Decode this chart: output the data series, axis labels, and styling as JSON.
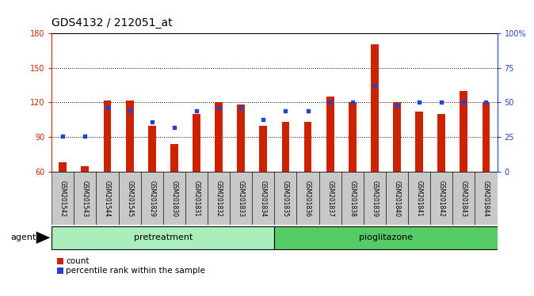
{
  "title": "GDS4132 / 212051_at",
  "samples": [
    "GSM201542",
    "GSM201543",
    "GSM201544",
    "GSM201545",
    "GSM201829",
    "GSM201830",
    "GSM201831",
    "GSM201832",
    "GSM201833",
    "GSM201834",
    "GSM201835",
    "GSM201836",
    "GSM201837",
    "GSM201838",
    "GSM201839",
    "GSM201840",
    "GSM201841",
    "GSM201842",
    "GSM201843",
    "GSM201844"
  ],
  "counts": [
    68,
    65,
    122,
    122,
    100,
    84,
    110,
    120,
    118,
    100,
    103,
    103,
    125,
    120,
    170,
    120,
    112,
    110,
    130,
    120
  ],
  "percentiles": [
    26,
    26,
    46,
    44,
    36,
    32,
    44,
    46,
    46,
    38,
    44,
    44,
    50,
    50,
    62,
    48,
    50,
    50,
    50,
    50
  ],
  "bar_color": "#cc2200",
  "dot_color": "#2244cc",
  "ylim_left": [
    60,
    180
  ],
  "ylim_right": [
    0,
    100
  ],
  "yticks_left": [
    60,
    90,
    120,
    150,
    180
  ],
  "yticks_right": [
    0,
    25,
    50,
    75,
    100
  ],
  "yticklabels_right": [
    "0",
    "25",
    "50",
    "75",
    "100%"
  ],
  "pretreatment_n": 10,
  "pioglitazone_n": 10,
  "pretreatment_color": "#aaeebb",
  "pioglitazone_color": "#55cc66",
  "agent_label": "agent",
  "pretreatment_label": "pretreatment",
  "pioglitazone_label": "pioglitazone",
  "legend_count_label": "count",
  "legend_percentile_label": "percentile rank within the sample",
  "bar_width": 0.35,
  "axis_left_color": "#cc2200",
  "axis_right_color": "#2244cc",
  "title_fontsize": 10,
  "tick_fontsize": 7,
  "sample_label_fontsize": 5.5,
  "group_label_fontsize": 8,
  "legend_fontsize": 7.5,
  "agent_fontsize": 8
}
